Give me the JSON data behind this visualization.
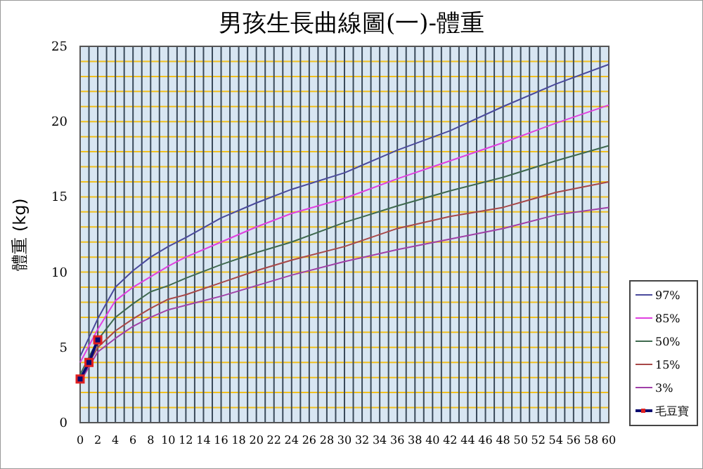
{
  "chart_data": {
    "type": "line",
    "title": "男孩生長曲線圖(一)-體重",
    "ylabel": "體重 (kg)",
    "xlim": [
      0,
      60
    ],
    "ylim": [
      0,
      25
    ],
    "xticks": [
      0,
      {
        "value": 1,
        "label": null
      },
      2,
      {
        "value": 3,
        "label": null
      },
      4,
      {
        "value": 5,
        "label": null
      },
      6,
      {
        "value": 7,
        "label": null
      },
      8,
      {
        "value": 9,
        "label": null
      },
      10,
      {
        "value": 11,
        "label": null
      },
      12,
      {
        "value": 13,
        "label": null
      },
      14,
      {
        "value": 15,
        "label": null
      },
      16,
      {
        "value": 17,
        "label": null
      },
      18,
      {
        "value": 19,
        "label": null
      },
      20,
      {
        "value": 21,
        "label": null
      },
      22,
      {
        "value": 23,
        "label": null
      },
      24,
      {
        "value": 25,
        "label": null
      },
      26,
      {
        "value": 27,
        "label": null
      },
      28,
      {
        "value": 29,
        "label": null
      },
      30,
      {
        "value": 31,
        "label": null
      },
      32,
      {
        "value": 33,
        "label": null
      },
      34,
      {
        "value": 35,
        "label": null
      },
      36,
      {
        "value": 37,
        "label": null
      },
      38,
      {
        "value": 39,
        "label": null
      },
      40,
      {
        "value": 41,
        "label": null
      },
      42,
      {
        "value": 43,
        "label": null
      },
      44,
      {
        "value": 45,
        "label": null
      },
      46,
      {
        "value": 47,
        "label": null
      },
      48,
      {
        "value": 49,
        "label": null
      },
      50,
      {
        "value": 51,
        "label": null
      },
      52,
      {
        "value": 53,
        "label": null
      },
      54,
      {
        "value": 55,
        "label": null
      },
      56,
      {
        "value": 57,
        "label": null
      },
      58,
      {
        "value": 59,
        "label": null
      },
      60
    ],
    "yticks": [
      0,
      {
        "value": 1,
        "label": null
      },
      {
        "value": 2,
        "label": null
      },
      {
        "value": 3,
        "label": null
      },
      {
        "value": 4,
        "label": null
      },
      5,
      {
        "value": 6,
        "label": null
      },
      {
        "value": 7,
        "label": null
      },
      {
        "value": 8,
        "label": null
      },
      {
        "value": 9,
        "label": null
      },
      10,
      {
        "value": 11,
        "label": null
      },
      {
        "value": 12,
        "label": null
      },
      {
        "value": 13,
        "label": null
      },
      {
        "value": 14,
        "label": null
      },
      15,
      {
        "value": 16,
        "label": null
      },
      {
        "value": 17,
        "label": null
      },
      {
        "value": 18,
        "label": null
      },
      {
        "value": 19,
        "label": null
      },
      20,
      {
        "value": 21,
        "label": null
      },
      {
        "value": 22,
        "label": null
      },
      {
        "value": 23,
        "label": null
      },
      {
        "value": 24,
        "label": null
      },
      25
    ],
    "grid": true,
    "legend": "right",
    "marker": "none",
    "line_style": "solid",
    "x": [
      0,
      2,
      4,
      6,
      8,
      10,
      12,
      16,
      20,
      24,
      30,
      36,
      42,
      48,
      54,
      60
    ],
    "series": [
      {
        "name": "97%",
        "color": "#4a4a9c",
        "values": [
          4.4,
          6.9,
          9.0,
          10.1,
          11.0,
          11.7,
          12.3,
          13.6,
          14.6,
          15.5,
          16.6,
          18.1,
          19.4,
          21.0,
          22.5,
          23.8
        ]
      },
      {
        "name": "85%",
        "color": "#e040e0",
        "values": [
          4.0,
          6.2,
          8.1,
          9.0,
          9.7,
          10.4,
          11.0,
          12.0,
          13.0,
          13.9,
          14.9,
          16.2,
          17.4,
          18.6,
          19.9,
          21.1
        ]
      },
      {
        "name": "50%",
        "color": "#3f6a4f",
        "values": [
          3.2,
          5.5,
          7.0,
          7.9,
          8.7,
          9.1,
          9.6,
          10.5,
          11.3,
          12.0,
          13.3,
          14.4,
          15.4,
          16.3,
          17.4,
          18.4
        ]
      },
      {
        "name": "15%",
        "color": "#a84848",
        "values": [
          2.9,
          5.0,
          6.1,
          6.9,
          7.6,
          8.2,
          8.5,
          9.3,
          10.1,
          10.8,
          11.7,
          12.9,
          13.7,
          14.3,
          15.3,
          16.0
        ]
      },
      {
        "name": "3%",
        "color": "#a040a8",
        "values": [
          2.7,
          4.7,
          5.6,
          6.4,
          7.0,
          7.5,
          7.8,
          8.4,
          9.1,
          9.8,
          10.7,
          11.5,
          12.2,
          12.9,
          13.8,
          14.3
        ]
      },
      {
        "name": "毛豆寶",
        "color": "#0a0a70",
        "marker": "square",
        "x": [
          0,
          1,
          2
        ],
        "values": [
          2.9,
          4.0,
          5.5
        ]
      }
    ]
  }
}
